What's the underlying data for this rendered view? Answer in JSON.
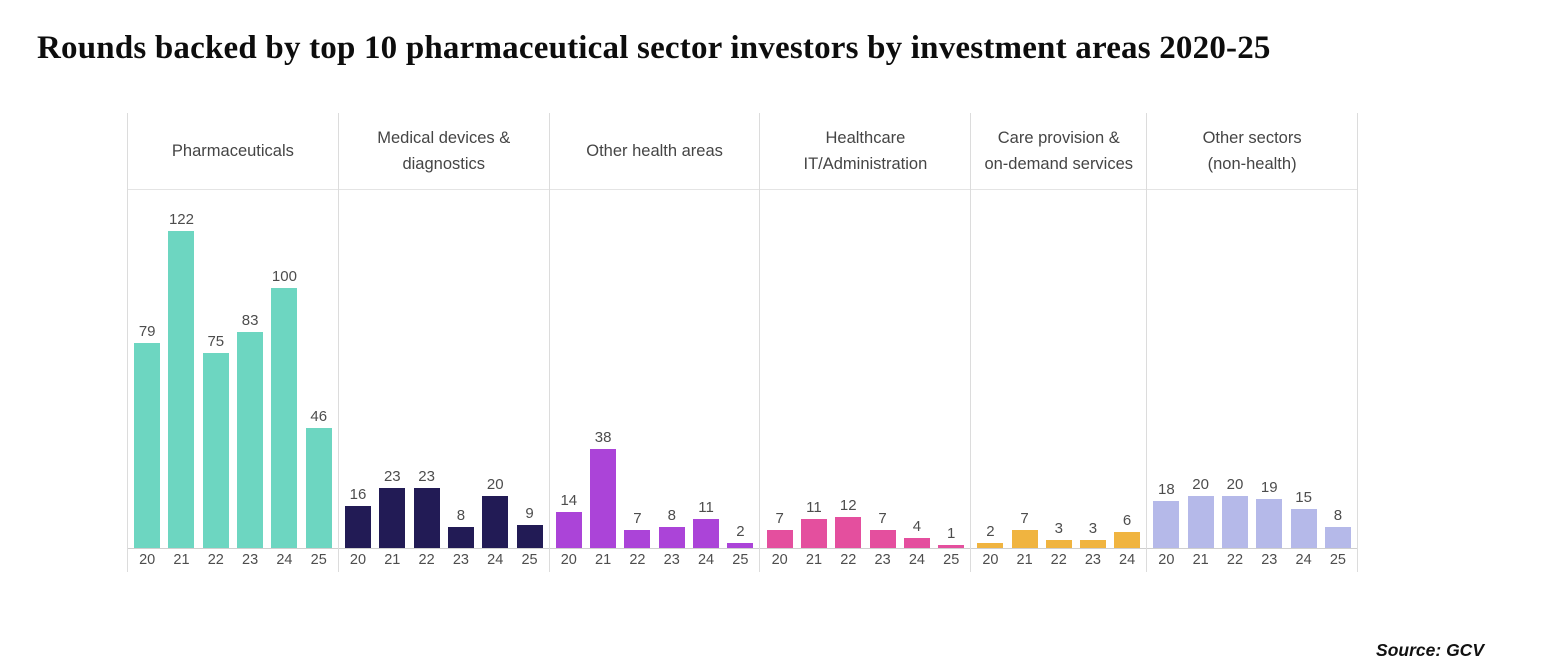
{
  "title": "Rounds backed by top 10 pharmaceutical sector investors by investment areas 2020-25",
  "source_label": "Source: GCV",
  "chart_data": {
    "type": "bar",
    "title": "Rounds backed by top 10 pharmaceutical sector investors by investment areas 2020-25",
    "ylabel": "",
    "xlabel": "",
    "ylim": [
      0,
      130
    ],
    "grid": false,
    "value_labels": true,
    "legend_position": "none",
    "label_color": "#4d4d4d",
    "divider_color": "#dcdcdc",
    "groups": [
      {
        "id": "pharmaceuticals",
        "label": "Pharmaceuticals",
        "label_lines": [
          "Pharmaceuticals"
        ],
        "color": "#6DD6C1",
        "categories": [
          "20",
          "21",
          "22",
          "23",
          "24",
          "25"
        ],
        "values": [
          79,
          122,
          75,
          83,
          100,
          46
        ]
      },
      {
        "id": "medical-devices-diagnostics",
        "label": "Medical devices & diagnostics",
        "label_lines": [
          "Medical devices &",
          "diagnostics"
        ],
        "color": "#221B55",
        "categories": [
          "20",
          "21",
          "22",
          "23",
          "24",
          "25"
        ],
        "values": [
          16,
          23,
          23,
          8,
          20,
          9
        ]
      },
      {
        "id": "other-health-areas",
        "label": "Other health areas",
        "label_lines": [
          "Other health areas"
        ],
        "color": "#AB44D8",
        "categories": [
          "20",
          "21",
          "22",
          "23",
          "24",
          "25"
        ],
        "values": [
          14,
          38,
          7,
          8,
          11,
          2
        ]
      },
      {
        "id": "healthcare-it-administration",
        "label": "Healthcare IT/Administration",
        "label_lines": [
          "Healthcare",
          "IT/Administration"
        ],
        "color": "#E44F9E",
        "categories": [
          "20",
          "21",
          "22",
          "23",
          "24",
          "25"
        ],
        "values": [
          7,
          11,
          12,
          7,
          4,
          1
        ]
      },
      {
        "id": "care-provision-on-demand-services",
        "label": "Care provision & on-demand services",
        "label_lines": [
          "Care provision &",
          "on-demand services"
        ],
        "color": "#F0B440",
        "categories": [
          "20",
          "21",
          "22",
          "23",
          "24"
        ],
        "values": [
          2,
          7,
          3,
          3,
          6
        ]
      },
      {
        "id": "other-sectors-non-health",
        "label": "Other sectors (non-health)",
        "label_lines": [
          "Other sectors",
          "(non-health)"
        ],
        "color": "#B5B9E9",
        "categories": [
          "20",
          "21",
          "22",
          "23",
          "24",
          "25"
        ],
        "values": [
          18,
          20,
          20,
          19,
          15,
          8
        ]
      }
    ]
  }
}
